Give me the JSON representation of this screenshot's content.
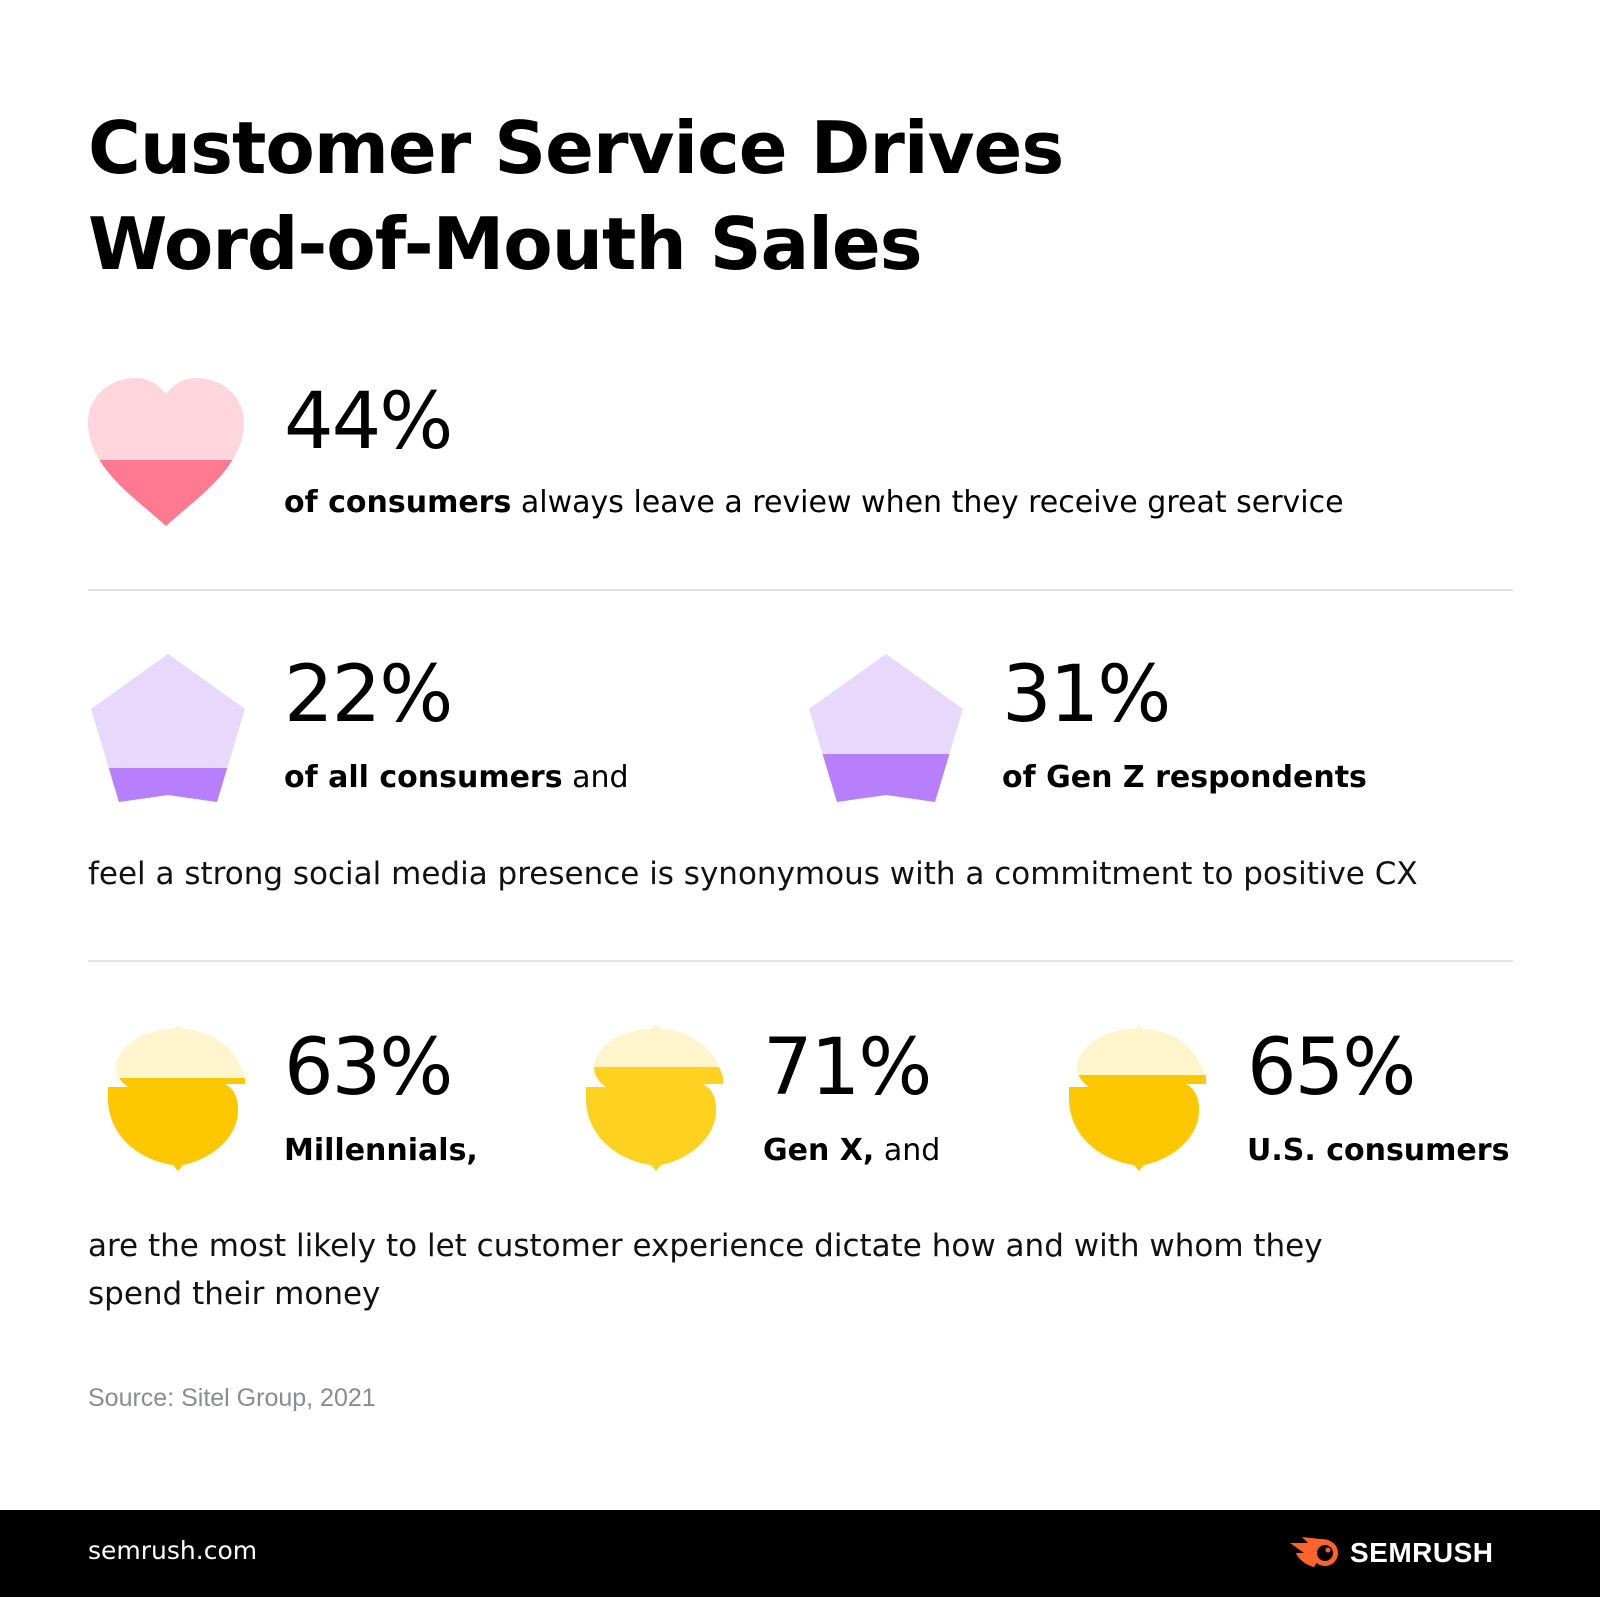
{
  "title": {
    "line1": "Customer Service Drives",
    "line2": "Word-of-Mouth Sales"
  },
  "colors": {
    "heart_light": "#ffd6de",
    "heart_dark": "#ff7a91",
    "star_light": "#e8d9fc",
    "star_dark": "#b77ffb",
    "coin_light": "#fff5cc",
    "coin_dark": "#ffc700",
    "brand_orange": "#ff642d"
  },
  "stat1": {
    "icon": "heart-icon",
    "value": "44%",
    "fill_percent": 44,
    "label_bold": "of consumers",
    "label_rest": " always leave a review when they receive great service"
  },
  "stat2": [
    {
      "icon": "star-icon",
      "value": "22%",
      "fill_percent": 22,
      "label_bold": "of all consumers",
      "label_rest": " and"
    },
    {
      "icon": "star-icon",
      "value": "31%",
      "fill_percent": 31,
      "label_bold": "of Gen Z respondents",
      "label_rest": ""
    }
  ],
  "caption2": "feel a strong social media presence is synonymous with a commitment to positive CX",
  "stat3": [
    {
      "icon": "coin-icon",
      "value": "63%",
      "fill_percent": 63,
      "label_bold": "Millennials,",
      "label_rest": ""
    },
    {
      "icon": "coin-icon",
      "value": "71%",
      "fill_percent": 71,
      "label_bold": "Gen X,",
      "label_rest": " and"
    },
    {
      "icon": "coin-icon",
      "value": "65%",
      "fill_percent": 65,
      "label_bold": "U.S. consumers",
      "label_rest": ""
    }
  ],
  "caption3": {
    "line1": "are the most likely to let customer experience dictate how and with whom they",
    "line2": "spend their money"
  },
  "source": "Source: Sitel Group, 2021",
  "footer": {
    "site": "semrush.com",
    "brand": "SEMRUSH"
  }
}
